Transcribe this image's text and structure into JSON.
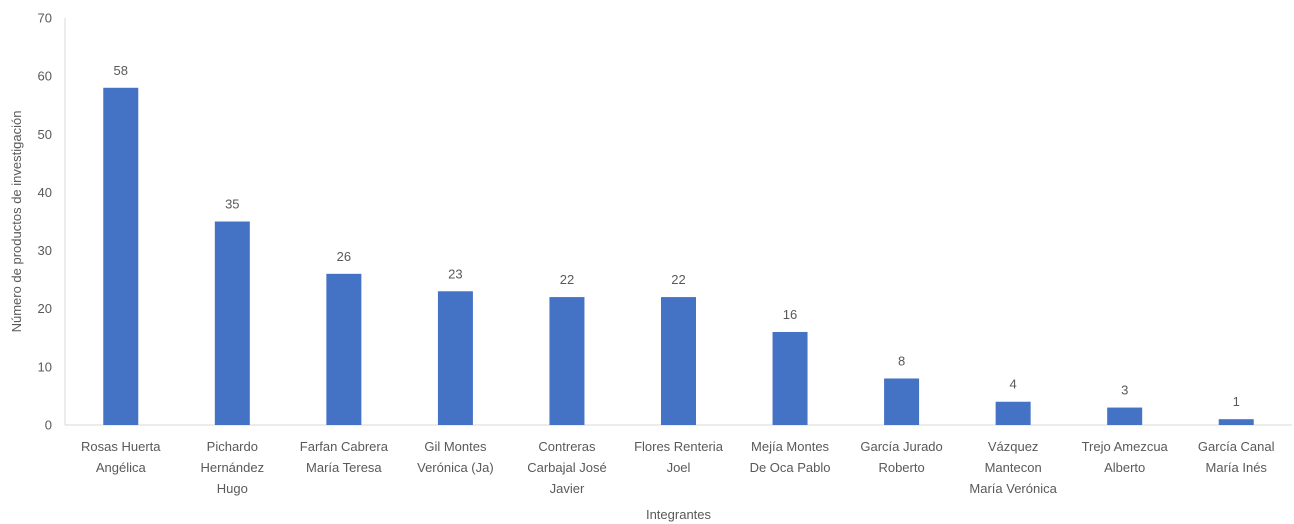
{
  "chart_data": {
    "type": "bar",
    "title": "",
    "xlabel": "Integrantes",
    "ylabel": "Número de productos de investigación",
    "ylim": [
      0,
      70
    ],
    "yticks": [
      0,
      10,
      20,
      30,
      40,
      50,
      60,
      70
    ],
    "grid": false,
    "legend": "none",
    "bar_color": "#4472C4",
    "categories": [
      [
        "Rosas Huerta",
        "Angélica"
      ],
      [
        "Pichardo",
        "Hernández",
        "Hugo"
      ],
      [
        "Farfan Cabrera",
        "María Teresa"
      ],
      [
        "Gil Montes",
        "Verónica (Ja)"
      ],
      [
        "Contreras",
        "Carbajal José",
        "Javier"
      ],
      [
        "Flores Renteria",
        "Joel"
      ],
      [
        "Mejía Montes",
        "De Oca Pablo"
      ],
      [
        "García Jurado",
        "Roberto"
      ],
      [
        "Vázquez",
        "Mantecon",
        "María Verónica"
      ],
      [
        "Trejo Amezcua",
        "Alberto"
      ],
      [
        "García Canal",
        "María Inés"
      ]
    ],
    "values": [
      58,
      35,
      26,
      23,
      22,
      22,
      16,
      8,
      4,
      3,
      1
    ]
  }
}
